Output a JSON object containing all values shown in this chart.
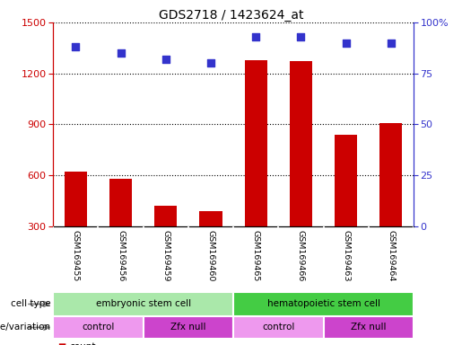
{
  "title": "GDS2718 / 1423624_at",
  "samples": [
    "GSM169455",
    "GSM169456",
    "GSM169459",
    "GSM169460",
    "GSM169465",
    "GSM169466",
    "GSM169463",
    "GSM169464"
  ],
  "counts": [
    620,
    580,
    420,
    390,
    1280,
    1270,
    840,
    910
  ],
  "percentile_ranks": [
    88,
    85,
    82,
    80,
    93,
    93,
    90,
    90
  ],
  "ylim_left": [
    300,
    1500
  ],
  "ylim_right": [
    0,
    100
  ],
  "yticks_left": [
    300,
    600,
    900,
    1200,
    1500
  ],
  "yticks_right": [
    0,
    25,
    50,
    75,
    100
  ],
  "ytick_right_labels": [
    "0",
    "25",
    "50",
    "75",
    "100%"
  ],
  "bar_color": "#cc0000",
  "dot_color": "#3333cc",
  "cell_type_groups": [
    {
      "label": "embryonic stem cell",
      "start": 0,
      "end": 3,
      "color": "#aae8aa"
    },
    {
      "label": "hematopoietic stem cell",
      "start": 4,
      "end": 7,
      "color": "#44cc44"
    }
  ],
  "genotype_groups": [
    {
      "label": "control",
      "start": 0,
      "end": 1,
      "color": "#ee99ee"
    },
    {
      "label": "Zfx null",
      "start": 2,
      "end": 3,
      "color": "#cc44cc"
    },
    {
      "label": "control",
      "start": 4,
      "end": 5,
      "color": "#ee99ee"
    },
    {
      "label": "Zfx null",
      "start": 6,
      "end": 7,
      "color": "#cc44cc"
    }
  ],
  "legend_count_color": "#cc0000",
  "legend_pct_color": "#3333cc",
  "grid_color": "#000000",
  "tick_color_left": "#cc0000",
  "tick_color_right": "#3333cc",
  "bar_width": 0.5,
  "dot_size": 35,
  "background_color": "#ffffff",
  "sample_label_bg": "#d0d0d0",
  "sample_label_sep_color": "#ffffff"
}
